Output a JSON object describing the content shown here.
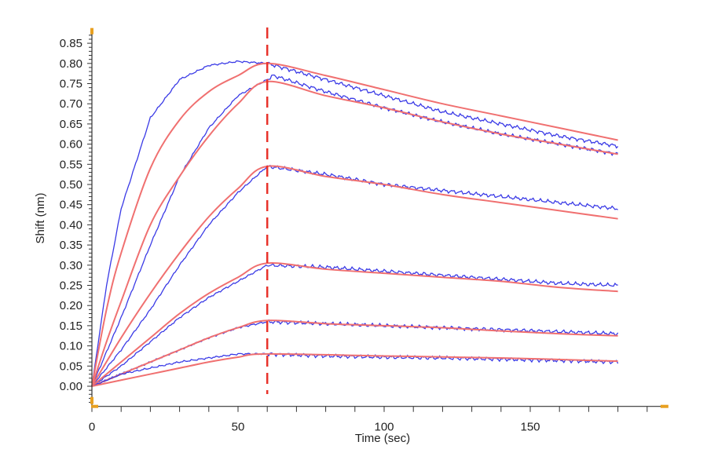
{
  "chart_data": {
    "type": "line",
    "title": "",
    "xlabel": "Time (sec)",
    "ylabel": "Shift (nm)",
    "xlim": [
      0,
      197
    ],
    "ylim": [
      -0.05,
      0.88
    ],
    "x_ticks": [
      0,
      50,
      100,
      150
    ],
    "y_ticks": [
      0.0,
      0.05,
      0.1,
      0.15,
      0.2,
      0.25,
      0.3,
      0.35,
      0.4,
      0.45,
      0.5,
      0.55,
      0.6,
      0.65,
      0.7,
      0.75,
      0.8,
      0.85
    ],
    "grid": false,
    "legend": "none",
    "annotations": [
      {
        "type": "vertical-dashed-line",
        "x": 60,
        "label": "association/dissociation switch"
      }
    ],
    "colors": {
      "data": "#3a3ae6",
      "fit": "#f07070",
      "marker": "#e8322a",
      "corner": "#e8a020"
    },
    "series": [
      {
        "name": "data-1",
        "kind": "data",
        "x": [
          0,
          5,
          10,
          20,
          30,
          40,
          50,
          60,
          70,
          80,
          100,
          120,
          140,
          160,
          180
        ],
        "y": [
          0,
          0.25,
          0.44,
          0.665,
          0.76,
          0.795,
          0.805,
          0.8,
          0.78,
          0.76,
          0.72,
          0.68,
          0.65,
          0.62,
          0.595
        ]
      },
      {
        "name": "fit-1",
        "kind": "fit",
        "x": [
          0,
          5,
          10,
          20,
          30,
          40,
          50,
          60,
          80,
          100,
          120,
          140,
          160,
          180
        ],
        "y": [
          0,
          0.19,
          0.33,
          0.54,
          0.66,
          0.73,
          0.77,
          0.8,
          0.77,
          0.735,
          0.7,
          0.67,
          0.64,
          0.61
        ]
      },
      {
        "name": "data-2",
        "kind": "data",
        "x": [
          0,
          10,
          20,
          30,
          40,
          50,
          60,
          62,
          80,
          100,
          120,
          140,
          160,
          180
        ],
        "y": [
          0,
          0.17,
          0.35,
          0.52,
          0.64,
          0.72,
          0.76,
          0.77,
          0.73,
          0.69,
          0.655,
          0.625,
          0.6,
          0.575
        ]
      },
      {
        "name": "fit-2",
        "kind": "fit",
        "x": [
          0,
          5,
          10,
          20,
          30,
          40,
          50,
          60,
          80,
          100,
          120,
          140,
          160,
          180
        ],
        "y": [
          0,
          0.11,
          0.21,
          0.4,
          0.52,
          0.62,
          0.7,
          0.755,
          0.72,
          0.69,
          0.655,
          0.625,
          0.6,
          0.575
        ]
      },
      {
        "name": "data-3",
        "kind": "data",
        "x": [
          0,
          10,
          20,
          30,
          40,
          50,
          60,
          80,
          100,
          120,
          140,
          160,
          180
        ],
        "y": [
          0,
          0.09,
          0.19,
          0.3,
          0.4,
          0.48,
          0.545,
          0.525,
          0.5,
          0.485,
          0.47,
          0.455,
          0.44
        ]
      },
      {
        "name": "fit-3",
        "kind": "fit",
        "x": [
          0,
          10,
          20,
          30,
          40,
          50,
          60,
          80,
          100,
          120,
          140,
          160,
          180
        ],
        "y": [
          0,
          0.12,
          0.23,
          0.33,
          0.42,
          0.49,
          0.545,
          0.52,
          0.5,
          0.475,
          0.455,
          0.435,
          0.415
        ]
      },
      {
        "name": "data-4",
        "kind": "data",
        "x": [
          0,
          10,
          20,
          30,
          40,
          50,
          60,
          80,
          100,
          120,
          140,
          160,
          180
        ],
        "y": [
          0,
          0.05,
          0.11,
          0.17,
          0.22,
          0.26,
          0.3,
          0.295,
          0.285,
          0.275,
          0.265,
          0.255,
          0.25
        ]
      },
      {
        "name": "fit-4",
        "kind": "fit",
        "x": [
          0,
          10,
          20,
          30,
          40,
          50,
          60,
          80,
          100,
          120,
          140,
          160,
          180
        ],
        "y": [
          0,
          0.06,
          0.12,
          0.18,
          0.23,
          0.27,
          0.305,
          0.29,
          0.28,
          0.27,
          0.26,
          0.245,
          0.235
        ]
      },
      {
        "name": "data-5",
        "kind": "data",
        "x": [
          0,
          10,
          20,
          30,
          40,
          50,
          60,
          80,
          100,
          120,
          140,
          160,
          180
        ],
        "y": [
          0,
          0.03,
          0.06,
          0.09,
          0.12,
          0.145,
          0.16,
          0.155,
          0.15,
          0.145,
          0.14,
          0.135,
          0.13
        ]
      },
      {
        "name": "fit-5",
        "kind": "fit",
        "x": [
          0,
          10,
          20,
          30,
          40,
          50,
          60,
          80,
          100,
          120,
          140,
          160,
          180
        ],
        "y": [
          0,
          0.03,
          0.06,
          0.09,
          0.12,
          0.145,
          0.163,
          0.155,
          0.15,
          0.145,
          0.137,
          0.13,
          0.125
        ]
      },
      {
        "name": "data-6",
        "kind": "data",
        "x": [
          0,
          10,
          20,
          30,
          40,
          50,
          60,
          80,
          100,
          120,
          140,
          160,
          180
        ],
        "y": [
          0,
          0.03,
          0.045,
          0.06,
          0.07,
          0.08,
          0.08,
          0.075,
          0.072,
          0.07,
          0.067,
          0.064,
          0.06
        ]
      },
      {
        "name": "fit-6",
        "kind": "fit",
        "x": [
          0,
          10,
          20,
          30,
          40,
          50,
          60,
          100,
          140,
          180
        ],
        "y": [
          0,
          0.015,
          0.03,
          0.045,
          0.06,
          0.072,
          0.08,
          0.075,
          0.07,
          0.062
        ]
      }
    ]
  }
}
